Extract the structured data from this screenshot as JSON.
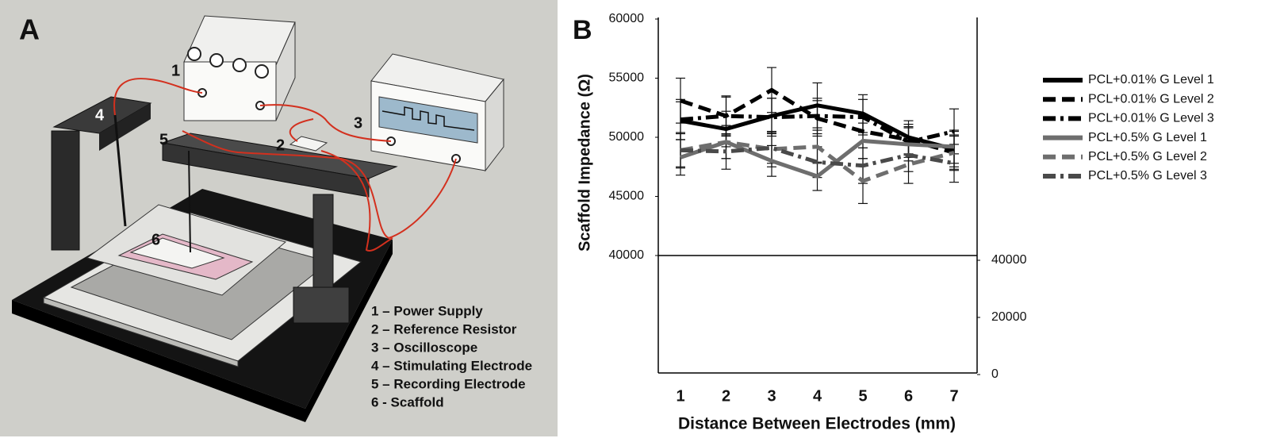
{
  "diagram": {
    "panel_label": "A",
    "callouts": [
      "1",
      "2",
      "3",
      "4",
      "5",
      "6"
    ],
    "legend": [
      "1 – Power Supply",
      "2 – Reference Resistor",
      "3 – Oscilloscope",
      "4 – Stimulating Electrode",
      "5 – Recording Electrode",
      "6 - Scaffold"
    ]
  },
  "chart_data": {
    "type": "line",
    "panel_label": "B",
    "x_label": "Distance Between Electrodes (mm)",
    "y_label": "Scaffold Impedance (Ω)",
    "categories": [
      "1",
      "2",
      "3",
      "4",
      "5",
      "6",
      "7"
    ],
    "ylim": [
      40000,
      60000
    ],
    "yticks": [
      40000,
      45000,
      50000,
      55000,
      60000
    ],
    "y2lim": [
      0,
      40000
    ],
    "y2ticks": [
      0,
      20000,
      40000
    ],
    "series": [
      {
        "name": "PCL+0.01% G Level 1",
        "color": "#000000",
        "dash": "solid",
        "values": [
          51400,
          50700,
          51800,
          52700,
          52000,
          50000,
          49000
        ],
        "errors": [
          1600,
          1500,
          1500,
          1900,
          1600,
          1400,
          1500
        ]
      },
      {
        "name": "PCL+0.01% G Level 2",
        "color": "#000000",
        "dash": "dash",
        "values": [
          53100,
          51800,
          54000,
          51600,
          50500,
          49800,
          48700
        ],
        "errors": [
          1900,
          1700,
          1900,
          1500,
          1400,
          1300,
          1400
        ]
      },
      {
        "name": "PCL+0.01% G Level 3",
        "color": "#000000",
        "dash": "dashdot",
        "values": [
          51500,
          51800,
          51700,
          51800,
          51700,
          49600,
          50500
        ],
        "errors": [
          1700,
          1600,
          1600,
          1500,
          1500,
          1300,
          1900
        ]
      },
      {
        "name": "PCL+0.5% G Level 1",
        "color": "#6e6e6e",
        "dash": "solid",
        "values": [
          48300,
          49600,
          48000,
          46700,
          49700,
          49400,
          49200
        ],
        "errors": [
          1500,
          1400,
          1300,
          1200,
          1500,
          1400,
          1400
        ]
      },
      {
        "name": "PCL+0.5% G Level 2",
        "color": "#6e6e6e",
        "dash": "dash",
        "values": [
          48900,
          49600,
          49000,
          49200,
          46300,
          47700,
          48700
        ],
        "errors": [
          1500,
          1400,
          1500,
          1400,
          1900,
          1600,
          1500
        ]
      },
      {
        "name": "PCL+0.5% G Level 3",
        "color": "#4a4a4a",
        "dash": "dashdot",
        "values": [
          48900,
          48800,
          49100,
          47900,
          47600,
          48500,
          47800
        ],
        "errors": [
          1400,
          1500,
          1300,
          1300,
          1500,
          1400,
          1600
        ]
      }
    ]
  }
}
